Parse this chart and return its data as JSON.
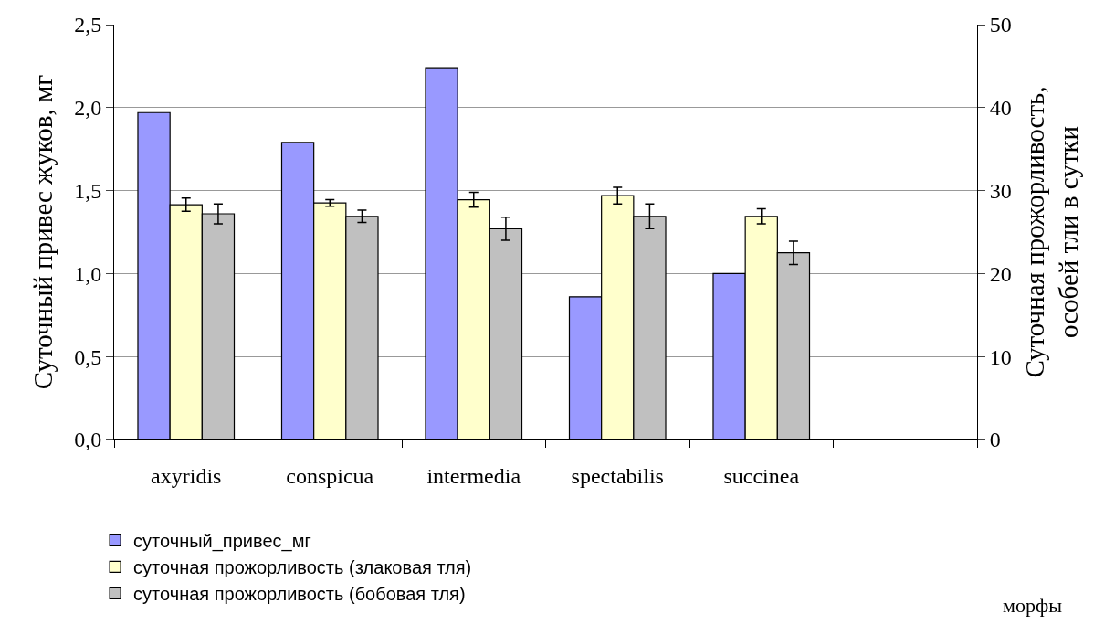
{
  "chart_data": {
    "type": "bar",
    "categories": [
      "axyridis",
      "conspicua",
      "intermedia",
      "spectabilis",
      "succinea",
      null
    ],
    "series": [
      {
        "name": "суточный_привес_мг",
        "color": "#9999ff",
        "values": [
          1.97,
          1.79,
          2.24,
          0.86,
          1.0,
          null
        ]
      },
      {
        "name": "суточная прожорливость (злаковая тля)",
        "color": "#ffffcc",
        "axis": "y2",
        "values": [
          28.3,
          28.5,
          28.9,
          29.4,
          26.9,
          null
        ],
        "errors": [
          0.8,
          0.4,
          0.9,
          1.0,
          0.9,
          null
        ]
      },
      {
        "name": "суточная прожорливость (бобовая тля)",
        "color": "#c0c0c0",
        "axis": "y2",
        "values": [
          27.2,
          26.9,
          25.4,
          26.9,
          22.5,
          null
        ],
        "errors": [
          1.2,
          0.75,
          1.4,
          1.5,
          1.4,
          null
        ]
      }
    ],
    "ylabel": "Суточный привес жуков, мг",
    "y2label": "Суточная прожорливость,\nособей тли в сутки",
    "ylim": [
      0,
      2.5
    ],
    "yticks": [
      {
        "value": 0,
        "label": "0,0"
      },
      {
        "value": 0.5,
        "label": "0,5"
      },
      {
        "value": 1,
        "label": "1,0"
      },
      {
        "value": 1.5,
        "label": "1,5"
      },
      {
        "value": 2,
        "label": "2,0"
      },
      {
        "value": 2.5,
        "label": "2,5"
      }
    ],
    "y2lim": [
      0,
      50
    ],
    "y2ticks": [
      0,
      10,
      20,
      30,
      40,
      50
    ],
    "grid": "y",
    "legend": "bottom left",
    "annotations": [
      "морфы"
    ]
  }
}
